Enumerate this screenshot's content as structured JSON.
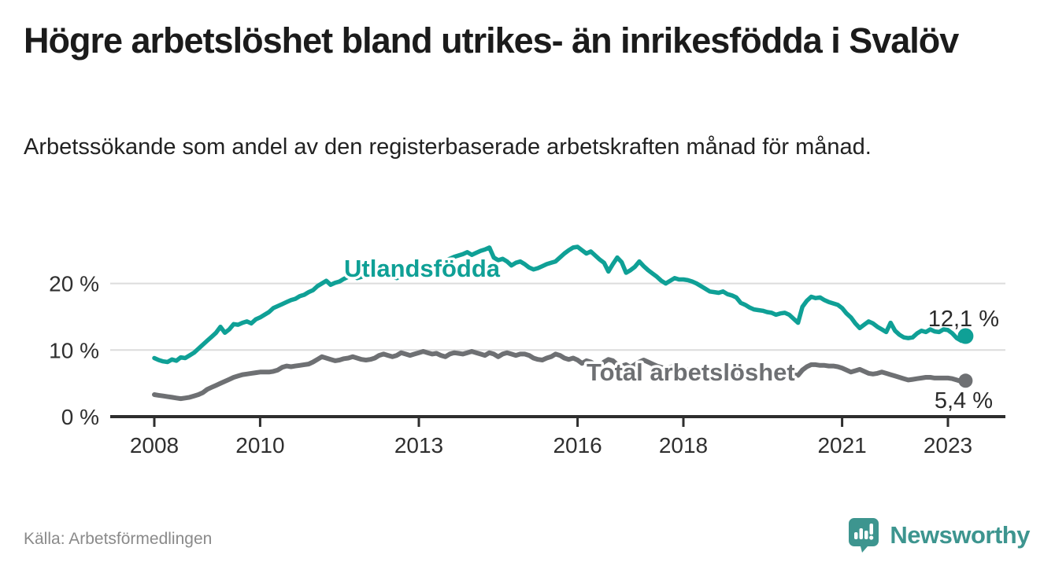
{
  "header": {
    "title": "Högre arbetslöshet bland utrikes- än inrikesfödda i Svalöv",
    "subtitle": "Arbetssökande som andel av den registerbaserade arbetskraften månad för månad."
  },
  "footer": {
    "source": "Källa: Arbetsförmedlingen",
    "brand": "Newsworthy",
    "brand_icon": "newsworthy-speech-bubble-bar-chart-icon"
  },
  "colors": {
    "teal_line": "#0fa096",
    "gray_line": "#6e7073",
    "grid": "#dcdcdc",
    "axis": "#2e2e2e",
    "tick_text": "#2f2f2f",
    "annotation_text": "#2b2b2b",
    "source_text": "#8a8a8a",
    "logo_teal": "#3d958f"
  },
  "chart_data": {
    "type": "line",
    "frequency": "monthly",
    "x_start": "2008-01",
    "x_end": "2023-05",
    "x_tick_years": [
      2008,
      2010,
      2013,
      2016,
      2018,
      2021,
      2023
    ],
    "y_ticks": [
      {
        "value": 20,
        "label": "20 %"
      },
      {
        "value": 10,
        "label": "10 %"
      },
      {
        "value": 0,
        "label": "0 %"
      }
    ],
    "ylim": [
      0,
      27
    ],
    "grid": "horizontal-only",
    "legend": "inline-labels",
    "series": [
      {
        "name": "Utlandsfödda",
        "color": "#0fa096",
        "end_value": 12.1,
        "end_label": "12,1 %",
        "values": [
          8.8,
          8.5,
          8.3,
          8.2,
          8.6,
          8.4,
          8.9,
          8.8,
          9.2,
          9.6,
          10.2,
          10.8,
          11.4,
          12.0,
          12.6,
          13.5,
          12.6,
          13.1,
          13.9,
          13.8,
          14.1,
          14.3,
          14.0,
          14.6,
          14.9,
          15.3,
          15.7,
          16.3,
          16.6,
          16.9,
          17.2,
          17.5,
          17.7,
          18.1,
          18.3,
          18.7,
          19.0,
          19.6,
          20.0,
          20.4,
          19.8,
          20.1,
          20.3,
          20.7,
          21.0,
          21.2,
          20.8,
          21.0,
          21.4,
          21.8,
          22.2,
          22.0,
          21.7,
          21.4,
          21.0,
          20.8,
          21.2,
          21.4,
          21.6,
          21.8,
          21.9,
          22.1,
          22.4,
          22.7,
          23.0,
          23.3,
          23.5,
          23.7,
          24.0,
          24.2,
          24.4,
          24.7,
          24.3,
          24.6,
          24.9,
          25.1,
          25.4,
          23.9,
          23.5,
          23.7,
          23.3,
          22.7,
          23.1,
          23.3,
          22.9,
          22.4,
          22.1,
          22.3,
          22.6,
          22.9,
          23.1,
          23.3,
          23.9,
          24.5,
          25.0,
          25.4,
          25.5,
          25.0,
          24.5,
          24.8,
          24.2,
          23.6,
          23.1,
          21.8,
          22.9,
          23.9,
          23.2,
          21.6,
          22.0,
          22.5,
          23.3,
          22.6,
          22.0,
          21.5,
          21.0,
          20.4,
          20.0,
          20.4,
          20.8,
          20.6,
          20.6,
          20.5,
          20.3,
          20.0,
          19.6,
          19.2,
          18.8,
          18.7,
          18.6,
          18.8,
          18.4,
          18.2,
          17.9,
          17.1,
          16.8,
          16.4,
          16.1,
          16.0,
          15.9,
          15.7,
          15.6,
          15.3,
          15.5,
          15.6,
          15.3,
          14.7,
          14.1,
          16.5,
          17.4,
          18.0,
          17.8,
          17.9,
          17.5,
          17.2,
          17.0,
          16.8,
          16.3,
          15.5,
          14.9,
          14.0,
          13.3,
          13.8,
          14.3,
          14.0,
          13.5,
          13.1,
          12.7,
          14.1,
          12.9,
          12.3,
          11.9,
          11.8,
          11.9,
          12.5,
          12.9,
          12.7,
          13.1,
          12.8,
          12.7,
          13.1,
          13.0,
          12.5,
          11.8,
          11.4,
          12.1
        ]
      },
      {
        "name": "Total arbetslöshet",
        "color": "#6e7073",
        "end_value": 5.4,
        "end_label": "5,4 %",
        "values": [
          3.3,
          3.2,
          3.1,
          3.0,
          2.9,
          2.8,
          2.7,
          2.8,
          2.9,
          3.1,
          3.3,
          3.6,
          4.1,
          4.4,
          4.7,
          5.0,
          5.3,
          5.6,
          5.9,
          6.1,
          6.3,
          6.4,
          6.5,
          6.6,
          6.7,
          6.7,
          6.7,
          6.8,
          7.0,
          7.4,
          7.6,
          7.5,
          7.6,
          7.7,
          7.8,
          7.9,
          8.2,
          8.6,
          9.0,
          8.8,
          8.6,
          8.4,
          8.5,
          8.7,
          8.8,
          9.0,
          8.8,
          8.6,
          8.5,
          8.6,
          8.8,
          9.2,
          9.4,
          9.2,
          9.0,
          9.2,
          9.6,
          9.4,
          9.2,
          9.4,
          9.6,
          9.8,
          9.6,
          9.4,
          9.5,
          9.2,
          9.0,
          9.4,
          9.6,
          9.5,
          9.4,
          9.6,
          9.8,
          9.6,
          9.4,
          9.2,
          9.6,
          9.4,
          9.0,
          9.4,
          9.6,
          9.4,
          9.2,
          9.4,
          9.4,
          9.2,
          8.8,
          8.6,
          8.5,
          8.8,
          9.0,
          9.4,
          9.2,
          8.8,
          8.6,
          8.8,
          8.5,
          8.0,
          8.4,
          8.2,
          7.8,
          7.6,
          8.2,
          8.6,
          8.4,
          7.8,
          7.6,
          7.8,
          7.4,
          7.8,
          8.2,
          8.5,
          8.2,
          7.9,
          7.6,
          7.4,
          7.2,
          7.4,
          7.6,
          7.4,
          7.2,
          7.0,
          6.9,
          6.8,
          6.7,
          6.6,
          6.5,
          6.6,
          6.7,
          6.6,
          6.5,
          6.4,
          6.3,
          6.2,
          6.1,
          6.0,
          6.0,
          6.1,
          6.2,
          6.1,
          6.0,
          6.1,
          6.2,
          6.3,
          6.4,
          6.3,
          6.2,
          7.0,
          7.5,
          7.8,
          7.8,
          7.7,
          7.7,
          7.6,
          7.6,
          7.5,
          7.3,
          7.0,
          6.7,
          6.9,
          7.1,
          6.8,
          6.5,
          6.4,
          6.5,
          6.7,
          6.5,
          6.3,
          6.1,
          5.9,
          5.7,
          5.5,
          5.6,
          5.7,
          5.8,
          5.9,
          5.9,
          5.8,
          5.8,
          5.8,
          5.8,
          5.7,
          5.5,
          5.3,
          5.4
        ]
      }
    ]
  }
}
